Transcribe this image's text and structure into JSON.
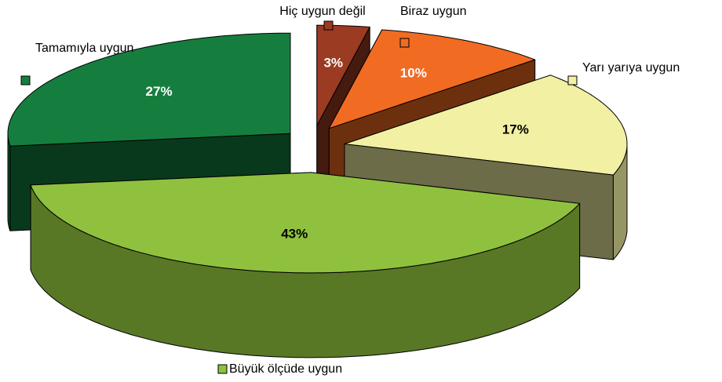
{
  "chart_data": {
    "type": "pie3d",
    "categories": [
      "Hiç uygun değil",
      "Biraz uygun",
      "Yarı yarıya uygun",
      "Büyük ölçüde uygun",
      "Tamamıyla uygun"
    ],
    "values": [
      3,
      10,
      17,
      43,
      27
    ],
    "value_labels": [
      "3%",
      "10%",
      "17%",
      "43%",
      "27%"
    ],
    "colors": [
      "#9a3b22",
      "#f26b22",
      "#f2f0a2",
      "#8fc13e",
      "#157e3e"
    ],
    "exploded": true
  }
}
